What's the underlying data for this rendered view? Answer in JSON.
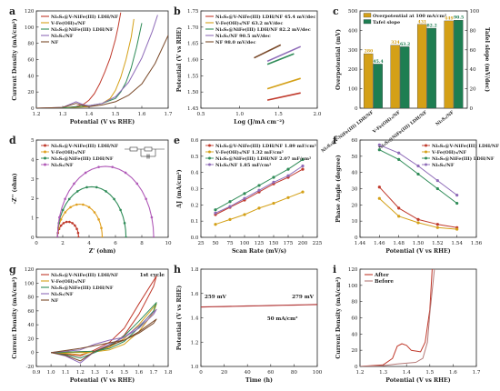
{
  "colors": {
    "ni3s2_v_nife": "#c0392b",
    "v_fe": "#d4a017",
    "ni3s2_nife": "#2e8b57",
    "ni3s2": "#8e6bb8",
    "nf": "#7a4a2a",
    "bar_overpotential": "#d4a017",
    "bar_tafel": "#1e7e52",
    "eis_purple": "#b05ab8",
    "eis_green": "#2e8b57",
    "eis_orange": "#e0a020",
    "eis_red": "#c0392b",
    "stability": "#b33a3a",
    "after": "#c0392b",
    "before": "#b57a78"
  },
  "chart_data": [
    {
      "id": "a",
      "type": "line",
      "panel_label": "a",
      "xlabel": "Potential (V vs RHE)",
      "ylabel": "Current Density (mA/cm²)",
      "xlim": [
        1.2,
        1.7
      ],
      "ylim": [
        0,
        120
      ],
      "xticks": [
        "1.2",
        "1.3",
        "1.4",
        "1.5",
        "1.6",
        "1.7"
      ],
      "yticks": [
        "0",
        "20",
        "40",
        "60",
        "80",
        "100",
        "120"
      ],
      "legend": "top-left",
      "series": [
        {
          "name": "Ni₃S₂@V-NiFe(III) LDH/NF",
          "color_key": "ni3s2_v_nife",
          "x": [
            1.2,
            1.3,
            1.35,
            1.38,
            1.4,
            1.42,
            1.44,
            1.46,
            1.48,
            1.5,
            1.51,
            1.52
          ],
          "y": [
            0,
            0.5,
            2,
            5,
            10,
            18,
            30,
            45,
            62,
            85,
            100,
            118
          ]
        },
        {
          "name": "V-Fe(OH)₃/NF",
          "color_key": "v_fe",
          "x": [
            1.2,
            1.3,
            1.4,
            1.45,
            1.48,
            1.5,
            1.52,
            1.54,
            1.56,
            1.57
          ],
          "y": [
            0,
            0.3,
            2,
            6,
            12,
            22,
            38,
            60,
            88,
            110
          ]
        },
        {
          "name": "Ni₃S₂@NiFe(III) LDH/NF",
          "color_key": "ni3s2_nife",
          "x": [
            1.2,
            1.3,
            1.4,
            1.45,
            1.5,
            1.52,
            1.54,
            1.56,
            1.58,
            1.6
          ],
          "y": [
            0,
            0.3,
            3,
            6,
            12,
            20,
            32,
            50,
            75,
            105
          ]
        },
        {
          "name": "Ni₃S₂/NF",
          "color_key": "ni3s2",
          "x": [
            1.2,
            1.3,
            1.35,
            1.38,
            1.4,
            1.45,
            1.5,
            1.55,
            1.6,
            1.64,
            1.66
          ],
          "y": [
            0,
            1,
            8,
            4,
            3,
            6,
            14,
            32,
            62,
            95,
            115
          ]
        },
        {
          "name": "NF",
          "color_key": "nf",
          "x": [
            1.2,
            1.3,
            1.35,
            1.38,
            1.4,
            1.45,
            1.5,
            1.55,
            1.6,
            1.65,
            1.7
          ],
          "y": [
            0,
            1,
            6,
            3,
            2,
            4,
            8,
            16,
            30,
            55,
            90
          ]
        }
      ]
    },
    {
      "id": "b",
      "type": "line",
      "panel_label": "b",
      "xlabel": "Log (J/mA cm⁻²)",
      "ylabel": "Potential (V vs RHE)",
      "xlim": [
        0.25,
        2.0
      ],
      "ylim": [
        1.45,
        1.75
      ],
      "xticks": [
        "0.5",
        "1.0",
        "1.5",
        "2.0"
      ],
      "yticks": [
        "1.45",
        "1.50",
        "1.55",
        "1.60",
        "1.65",
        "1.70",
        "1.75"
      ],
      "legend": "top-left",
      "series": [
        {
          "name": "Ni₃S₂@V-NiFe(III) LDH/NF 45.4 mV/dec",
          "color_key": "ni3s2_v_nife",
          "x": [
            1.25,
            1.75
          ],
          "y": [
            1.475,
            1.497
          ]
        },
        {
          "name": "V-Fe(OH)₃/NF 63.2 mV/dec",
          "color_key": "v_fe",
          "x": [
            1.25,
            1.75
          ],
          "y": [
            1.51,
            1.542
          ]
        },
        {
          "name": "Ni₃S₂@NiFe(III) LDH/NF 82.2 mV/dec",
          "color_key": "ni3s2_nife",
          "x": [
            1.25,
            1.65
          ],
          "y": [
            1.585,
            1.618
          ]
        },
        {
          "name": "Ni₃S₂/NF 90.5 mV/dec",
          "color_key": "ni3s2",
          "x": [
            1.25,
            1.75
          ],
          "y": [
            1.595,
            1.64
          ]
        },
        {
          "name": "NF 98.0 mV/dec",
          "color_key": "nf",
          "x": [
            1.05,
            1.45
          ],
          "y": [
            1.605,
            1.645
          ]
        }
      ]
    },
    {
      "id": "c",
      "type": "bar",
      "panel_label": "c",
      "ylabel": "Overpotential (mV)",
      "ylabel_right": "Tafel slope (mV/dec)",
      "ylim": [
        0,
        500
      ],
      "ylim_right": [
        0,
        100
      ],
      "yticks": [
        "0",
        "100",
        "200",
        "300",
        "400",
        "500"
      ],
      "yticks_right": [
        "0",
        "20",
        "40",
        "60",
        "80",
        "100"
      ],
      "categories": [
        "Ni₃S₂@V-NiFe(III) LDH/NF",
        "V-Fe(OH)₃/NF",
        "Ni₃S₂@NiFe(III) LDH/NF",
        "Ni₃S₂/NF"
      ],
      "legend": "top-left",
      "series": [
        {
          "name": "Overpotential at 100 mA/cm²",
          "color_key": "bar_overpotential",
          "values": [
            280,
            324,
            431,
            449
          ],
          "labels": [
            "280",
            "324",
            "431",
            "449"
          ],
          "axis": "left"
        },
        {
          "name": "Tafel slope",
          "color_key": "bar_tafel",
          "values": [
            45.4,
            63.2,
            82.2,
            90.5
          ],
          "labels": [
            "45.4",
            "63.2",
            "82.2",
            "90.5"
          ],
          "axis": "right"
        }
      ]
    },
    {
      "id": "d",
      "type": "scatter",
      "panel_label": "d",
      "xlabel": "Z' (ohm)",
      "ylabel": "-Z'' (ohm)",
      "xlim": [
        0,
        10
      ],
      "ylim": [
        0,
        5
      ],
      "xticks": [
        "0",
        "2",
        "4",
        "6",
        "8",
        "10"
      ],
      "yticks": [
        "0",
        "1",
        "2",
        "3",
        "4",
        "5"
      ],
      "legend": "top-left",
      "series": [
        {
          "name": "Ni₃S₂@V-NiFe(III) LDH/NF",
          "color_key": "eis_red",
          "rs": 1.6,
          "rct": 1.6
        },
        {
          "name": "V-Fe(OH)₃/NF",
          "color_key": "eis_orange",
          "rs": 1.6,
          "rct": 3.4
        },
        {
          "name": "Ni₃S₂@NiFe(III) LDH/NF",
          "color_key": "eis_green",
          "rs": 1.6,
          "rct": 5.2
        },
        {
          "name": "Ni₃S₂/NF",
          "color_key": "eis_purple",
          "rs": 1.6,
          "rct": 7.3
        }
      ]
    },
    {
      "id": "e",
      "type": "scatter",
      "panel_label": "e",
      "xlabel": "Scan Rate (mV/s)",
      "ylabel": "ΔJ (mA/cm²)",
      "xlim": [
        25,
        225
      ],
      "ylim": [
        0,
        0.6
      ],
      "xticks": [
        "25",
        "50",
        "75",
        "100",
        "125",
        "150",
        "175",
        "200",
        "225"
      ],
      "yticks": [
        "0.0",
        "0.1",
        "0.2",
        "0.3",
        "0.4",
        "0.5",
        "0.6"
      ],
      "legend": "top-left",
      "series": [
        {
          "name": "Ni₃S₂@V-NiFe(III) LDH/NF 1.89 mF/cm²",
          "color_key": "ni3s2_v_nife",
          "x": [
            50,
            75,
            100,
            125,
            150,
            175,
            200
          ],
          "y": [
            0.14,
            0.185,
            0.23,
            0.28,
            0.33,
            0.37,
            0.42
          ]
        },
        {
          "name": "V-Fe(OH)₃/NF 1.32 mF/cm²",
          "color_key": "v_fe",
          "x": [
            50,
            75,
            100,
            125,
            150,
            175,
            200
          ],
          "y": [
            0.08,
            0.11,
            0.14,
            0.18,
            0.21,
            0.245,
            0.28
          ]
        },
        {
          "name": "Ni₃S₂@NiFe(III) LDH/NF 2.07 mF/cm²",
          "color_key": "ni3s2_nife",
          "x": [
            50,
            75,
            100,
            125,
            150,
            175,
            200
          ],
          "y": [
            0.17,
            0.22,
            0.27,
            0.32,
            0.37,
            0.42,
            0.48
          ]
        },
        {
          "name": "Ni₃S₂/NF 1.85 mF/cm²",
          "color_key": "ni3s2",
          "x": [
            50,
            75,
            100,
            125,
            150,
            175,
            200
          ],
          "y": [
            0.15,
            0.19,
            0.24,
            0.29,
            0.34,
            0.38,
            0.44
          ]
        }
      ]
    },
    {
      "id": "f",
      "type": "scatter",
      "panel_label": "f",
      "xlabel": "Potential (V vs RHE)",
      "ylabel": "Phase Angle (degree)",
      "xlim": [
        1.44,
        1.56
      ],
      "ylim": [
        0,
        60
      ],
      "xticks": [
        "1.44",
        "1.46",
        "1.48",
        "1.50",
        "1.52",
        "1.54",
        "1.56"
      ],
      "yticks": [
        "0",
        "10",
        "20",
        "30",
        "40",
        "50",
        "60"
      ],
      "legend": "top-right",
      "series": [
        {
          "name": "Ni₃S₂@V-NiFe(III) LDH/NF",
          "color_key": "ni3s2_v_nife",
          "x": [
            1.46,
            1.48,
            1.5,
            1.52,
            1.54
          ],
          "y": [
            31,
            18,
            11,
            8,
            6
          ]
        },
        {
          "name": "V-Fe(OH)₃/NF",
          "color_key": "v_fe",
          "x": [
            1.46,
            1.48,
            1.5,
            1.52,
            1.54
          ],
          "y": [
            24,
            13,
            9,
            6,
            5
          ]
        },
        {
          "name": "Ni₃S₂@NiFe(III) LDH/NF",
          "color_key": "ni3s2_nife",
          "x": [
            1.46,
            1.48,
            1.5,
            1.52,
            1.54
          ],
          "y": [
            54,
            48,
            39,
            30,
            21
          ]
        },
        {
          "name": "Ni₃S₂/NF",
          "color_key": "ni3s2",
          "x": [
            1.46,
            1.48,
            1.5,
            1.52,
            1.54
          ],
          "y": [
            57,
            52,
            44,
            35,
            26
          ]
        }
      ]
    },
    {
      "id": "g",
      "type": "line",
      "panel_label": "g",
      "annotation": "1st cycle",
      "xlabel": "Potential (V vs RHE)",
      "ylabel": "Current Density (mA/cm²)",
      "xlim": [
        0.9,
        1.8
      ],
      "ylim": [
        -20,
        120
      ],
      "xticks": [
        "0.9",
        "1.0",
        "1.1",
        "1.2",
        "1.3",
        "1.4",
        "1.5",
        "1.6",
        "1.7",
        "1.8"
      ],
      "yticks": [
        "-20",
        "0",
        "20",
        "40",
        "60",
        "80",
        "100",
        "120"
      ],
      "legend": "top-left",
      "series": [
        {
          "name": "Ni₃S₂@V-NiFe(III) LDH/NF",
          "color_key": "ni3s2_v_nife",
          "x": [
            1.0,
            1.3,
            1.4,
            1.5,
            1.6,
            1.7,
            1.72,
            1.6,
            1.5,
            1.4,
            1.3,
            1.2,
            1.1,
            1.0
          ],
          "y": [
            0,
            2,
            8,
            25,
            55,
            95,
            110,
            70,
            35,
            15,
            4,
            -5,
            -2,
            0
          ]
        },
        {
          "name": "V-Fe(OH)₃/NF",
          "color_key": "v_fe",
          "x": [
            1.0,
            1.3,
            1.4,
            1.5,
            1.6,
            1.7,
            1.72,
            1.6,
            1.5,
            1.4,
            1.3,
            1.2,
            1.1,
            1.0
          ],
          "y": [
            0,
            1,
            4,
            12,
            30,
            58,
            70,
            40,
            20,
            8,
            2,
            -3,
            -1,
            0
          ]
        },
        {
          "name": "Ni₃S₂@NiFe(III) LDH/NF",
          "color_key": "ni3s2_nife",
          "x": [
            1.0,
            1.3,
            1.4,
            1.5,
            1.6,
            1.7,
            1.72,
            1.6,
            1.5,
            1.4,
            1.3,
            1.2,
            1.1,
            1.0
          ],
          "y": [
            0,
            2,
            6,
            16,
            36,
            60,
            72,
            45,
            24,
            10,
            0,
            -8,
            -3,
            0
          ]
        },
        {
          "name": "Ni₃S₂/NF",
          "color_key": "ni3s2",
          "x": [
            1.0,
            1.2,
            1.3,
            1.4,
            1.5,
            1.6,
            1.7,
            1.72,
            1.6,
            1.5,
            1.4,
            1.3,
            1.2,
            1.1,
            1.0
          ],
          "y": [
            0,
            4,
            12,
            18,
            22,
            35,
            55,
            62,
            38,
            22,
            12,
            2,
            -15,
            -5,
            0
          ]
        },
        {
          "name": "NF",
          "color_key": "nf",
          "x": [
            1.0,
            1.2,
            1.3,
            1.4,
            1.5,
            1.6,
            1.7,
            1.72,
            1.6,
            1.5,
            1.4,
            1.3,
            1.2,
            1.1,
            1.0
          ],
          "y": [
            0,
            6,
            10,
            14,
            18,
            28,
            42,
            48,
            30,
            18,
            10,
            2,
            -12,
            -4,
            0
          ]
        }
      ]
    },
    {
      "id": "h",
      "type": "line",
      "panel_label": "h",
      "xlabel": "Time (h)",
      "ylabel": "Potential (V vs RHE)",
      "xlim": [
        0,
        100
      ],
      "ylim": [
        1.0,
        1.8
      ],
      "xticks": [
        "0",
        "20",
        "40",
        "60",
        "80",
        "100"
      ],
      "yticks": [
        "1.0",
        "1.2",
        "1.4",
        "1.6",
        "1.8"
      ],
      "annotations": [
        "259 mV",
        "279 mV",
        "50 mA/cm²"
      ],
      "series": [
        {
          "color_key": "stability",
          "x": [
            0,
            10,
            20,
            30,
            40,
            50,
            60,
            70,
            80,
            90,
            100
          ],
          "y": [
            1.489,
            1.491,
            1.493,
            1.495,
            1.497,
            1.499,
            1.501,
            1.503,
            1.505,
            1.507,
            1.509
          ]
        }
      ]
    },
    {
      "id": "i",
      "type": "line",
      "panel_label": "i",
      "xlabel": "Potential (V vs RHE)",
      "ylabel": "Current Density (mA/cm²)",
      "xlim": [
        1.2,
        1.7
      ],
      "ylim": [
        0,
        120
      ],
      "xticks": [
        "1.2",
        "1.3",
        "1.4",
        "1.5",
        "1.6",
        "1.7"
      ],
      "yticks": [
        "0",
        "20",
        "40",
        "60",
        "80",
        "100",
        "120"
      ],
      "legend": "top-left",
      "series": [
        {
          "name": "After",
          "color_key": "after",
          "x": [
            1.2,
            1.3,
            1.34,
            1.36,
            1.38,
            1.4,
            1.42,
            1.46,
            1.48,
            1.5,
            1.51
          ],
          "y": [
            0,
            2,
            10,
            25,
            28,
            26,
            20,
            18,
            30,
            70,
            120
          ]
        },
        {
          "name": "Before",
          "color_key": "before",
          "x": [
            1.2,
            1.3,
            1.36,
            1.4,
            1.44,
            1.47,
            1.49,
            1.5,
            1.52
          ],
          "y": [
            0,
            1,
            3,
            4,
            5,
            10,
            30,
            65,
            120
          ]
        }
      ]
    }
  ]
}
